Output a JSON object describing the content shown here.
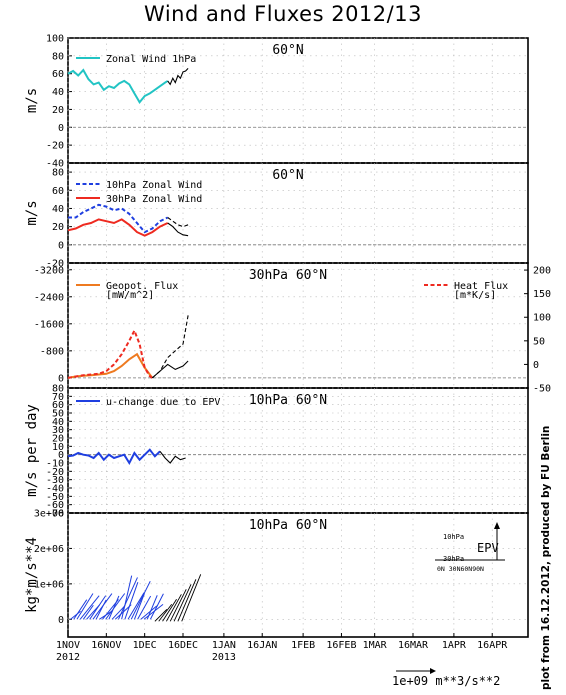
{
  "title": "Wind and Fluxes 2012/13",
  "credit": "plot from 16.12.2012, produced by FU Berlin",
  "colors": {
    "cyan": "#22c4c4",
    "blue": "#1f3fe0",
    "red": "#ee2a20",
    "orange": "#ee7a20",
    "black": "#000000"
  },
  "x_axis": {
    "ticks": [
      {
        "top": "1NOV",
        "bottom": "2012"
      },
      {
        "top": "16NOV",
        "bottom": ""
      },
      {
        "top": "1DEC",
        "bottom": ""
      },
      {
        "top": "16DEC",
        "bottom": ""
      },
      {
        "top": "1JAN",
        "bottom": "2013"
      },
      {
        "top": "16JAN",
        "bottom": ""
      },
      {
        "top": "1FEB",
        "bottom": ""
      },
      {
        "top": "16FEB",
        "bottom": ""
      },
      {
        "top": "1MAR",
        "bottom": ""
      },
      {
        "top": "16MAR",
        "bottom": ""
      },
      {
        "top": "1APR",
        "bottom": ""
      },
      {
        "top": "16APR",
        "bottom": ""
      }
    ]
  },
  "chart_data": [
    {
      "type": "line",
      "panel_title": "60°N",
      "ylabel": "m/s",
      "ylim": [
        -40,
        100
      ],
      "yticks": [
        "100",
        "80",
        "60",
        "40",
        "20",
        "0",
        "-20",
        "-40"
      ],
      "series": [
        {
          "name": "Zonal Wind 1hPa",
          "color": "cyan",
          "dash": false,
          "x": [
            0,
            2,
            4,
            6,
            8,
            10,
            12,
            14,
            16,
            18,
            20,
            22,
            24,
            26,
            28,
            30,
            32,
            34,
            36,
            38,
            39
          ],
          "y": [
            60,
            63,
            58,
            64,
            54,
            48,
            50,
            42,
            46,
            44,
            49,
            52,
            48,
            38,
            28,
            35,
            38,
            42,
            46,
            50,
            52
          ]
        },
        {
          "name": "",
          "color": "black",
          "dash": false,
          "x": [
            39,
            40,
            41,
            42,
            43,
            44,
            45,
            46,
            47
          ],
          "y": [
            52,
            48,
            55,
            50,
            58,
            55,
            62,
            63,
            66
          ]
        }
      ]
    },
    {
      "type": "line",
      "panel_title": "60°N",
      "ylabel": "m/s",
      "ylim": [
        -20,
        90
      ],
      "yticks": [
        "80",
        "60",
        "40",
        "20",
        "0",
        "-20"
      ],
      "series": [
        {
          "name": "10hPa Zonal Wind",
          "color": "blue",
          "dash": true,
          "x": [
            0,
            3,
            6,
            9,
            12,
            15,
            18,
            21,
            24,
            27,
            30,
            33,
            36,
            39
          ],
          "y": [
            30,
            30,
            36,
            40,
            44,
            42,
            38,
            40,
            34,
            24,
            14,
            18,
            26,
            30
          ]
        },
        {
          "name": "30hPa Zonal Wind",
          "color": "red",
          "dash": false,
          "x": [
            0,
            3,
            6,
            9,
            12,
            15,
            18,
            21,
            24,
            27,
            30,
            33,
            36,
            39
          ],
          "y": [
            16,
            18,
            22,
            24,
            28,
            26,
            24,
            28,
            22,
            14,
            10,
            14,
            20,
            24
          ]
        },
        {
          "name": "",
          "color": "black",
          "dash": true,
          "x": [
            39,
            41,
            43,
            45,
            47
          ],
          "y": [
            30,
            26,
            22,
            20,
            22
          ]
        },
        {
          "name": "",
          "color": "black",
          "dash": false,
          "x": [
            39,
            41,
            43,
            45,
            47
          ],
          "y": [
            24,
            20,
            14,
            11,
            10
          ]
        }
      ]
    },
    {
      "type": "line",
      "panel_title": "30hPa 60°N",
      "ylim_left": [
        -3400,
        300
      ],
      "ylim_right": [
        -50,
        215
      ],
      "yticks_left": [
        "-3200",
        "-2400",
        "-1600",
        "-800",
        "0"
      ],
      "yticks_right": [
        "200",
        "150",
        "100",
        "50",
        "0",
        "-50"
      ],
      "series": [
        {
          "name": "Geopot. Flux [mW/m^2]",
          "name_line1": "Geopot. Flux",
          "name_line2": "[mW/m^2]",
          "color": "orange",
          "dash": false,
          "x": [
            0,
            3,
            6,
            9,
            12,
            15,
            18,
            21,
            24,
            27,
            30,
            33
          ],
          "y": [
            0,
            -40,
            -60,
            -80,
            -100,
            -120,
            -200,
            -350,
            -550,
            -700,
            -300,
            0
          ]
        },
        {
          "name": "Heat Flux [m*K/s]",
          "name_line1": "Heat Flux",
          "name_line2": "[m*K/s]",
          "color": "red",
          "dash": true,
          "x": [
            0,
            3,
            6,
            9,
            12,
            15,
            18,
            21,
            24,
            26,
            28,
            30,
            32,
            33
          ],
          "y": [
            0,
            -40,
            -80,
            -100,
            -120,
            -200,
            -400,
            -700,
            -1100,
            -1400,
            -1000,
            -300,
            -50,
            0
          ]
        },
        {
          "name": "",
          "color": "black",
          "dash": false,
          "x": [
            33,
            36,
            39,
            42,
            45,
            47
          ],
          "y": [
            0,
            -200,
            -400,
            -250,
            -350,
            -500
          ]
        },
        {
          "name": "",
          "color": "black",
          "dash": true,
          "x": [
            33,
            36,
            39,
            42,
            45,
            47
          ],
          "y": [
            0,
            -200,
            -600,
            -800,
            -1000,
            -1850
          ]
        }
      ]
    },
    {
      "type": "line",
      "panel_title": "10hPa 60°N",
      "ylabel": "m/s per day",
      "ylim": [
        -70,
        80
      ],
      "yticks": [
        "80",
        "70",
        "60",
        "50",
        "40",
        "30",
        "20",
        "10",
        "0",
        "-10",
        "-20",
        "-30",
        "-40",
        "-50",
        "-60",
        "-70"
      ],
      "series": [
        {
          "name": "u-change due to EPV",
          "color": "blue",
          "dash": false,
          "x": [
            0,
            2,
            4,
            6,
            8,
            10,
            12,
            14,
            16,
            18,
            20,
            22,
            24,
            26,
            28,
            30,
            32,
            34,
            36
          ],
          "y": [
            -2,
            -1,
            2,
            0,
            -1,
            -4,
            2,
            -6,
            0,
            -4,
            -2,
            0,
            -10,
            2,
            -6,
            0,
            6,
            -2,
            4
          ]
        },
        {
          "name": "",
          "color": "black",
          "dash": false,
          "x": [
            36,
            38,
            40,
            42,
            44,
            46
          ],
          "y": [
            4,
            -4,
            -10,
            -2,
            -6,
            -4
          ]
        }
      ]
    },
    {
      "type": "vector",
      "panel_title": "10hPa 60°N",
      "ylabel": "kg*m/s**4",
      "ylim": [
        -500000,
        3000000
      ],
      "yticks": [
        "3e+06",
        "2e+06",
        "1e+06",
        "0"
      ],
      "legend_label": "EPV",
      "legend_y_ticks": [
        "10hPa",
        "30hPa"
      ],
      "legend_x_ticks": "0N 30N60N90N",
      "scale_label": "1e+09 m**3/s**2"
    }
  ]
}
